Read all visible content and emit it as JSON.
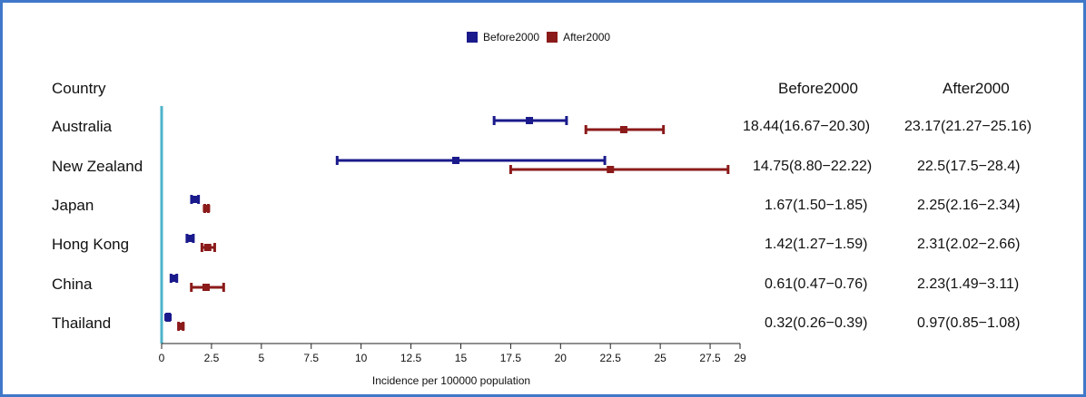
{
  "legend": {
    "before_label": "Before2000",
    "after_label": "After2000"
  },
  "headers": {
    "country": "Country",
    "before": "Before2000",
    "after": "After2000"
  },
  "colors": {
    "before": "#1a1a8c",
    "after": "#8b1a1a",
    "axis": "#4fb3c9",
    "frame": "#3f78c8"
  },
  "rows": [
    {
      "country": "Australia",
      "before_text": "18.44(16.67−20.30)",
      "after_text": "23.17(21.27−25.16)"
    },
    {
      "country": "New Zealand",
      "before_text": "14.75(8.80−22.22)",
      "after_text": "22.5(17.5−28.4)"
    },
    {
      "country": "Japan",
      "before_text": "1.67(1.50−1.85)",
      "after_text": "2.25(2.16−2.34)"
    },
    {
      "country": "Hong Kong",
      "before_text": "1.42(1.27−1.59)",
      "after_text": "2.31(2.02−2.66)"
    },
    {
      "country": "China",
      "before_text": "0.61(0.47−0.76)",
      "after_text": "2.23(1.49−3.11)"
    },
    {
      "country": "Thailand",
      "before_text": "0.32(0.26−0.39)",
      "after_text": "0.97(0.85−1.08)"
    }
  ],
  "chart_data": {
    "type": "scatter",
    "xlabel": "Incidence per 100000 population",
    "xlim": [
      0,
      29
    ],
    "xticks": [
      "0",
      "2.5",
      "5",
      "7.5",
      "10",
      "12.5",
      "15",
      "17.5",
      "20",
      "22.5",
      "25",
      "27.5",
      "29"
    ],
    "xtick_values": [
      0,
      2.5,
      5,
      7.5,
      10,
      12.5,
      15,
      17.5,
      20,
      22.5,
      25,
      27.5,
      29
    ],
    "categories": [
      "Australia",
      "New Zealand",
      "Japan",
      "Hong Kong",
      "China",
      "Thailand"
    ],
    "series": [
      {
        "name": "Before2000",
        "estimate": [
          18.44,
          14.75,
          1.67,
          1.42,
          0.61,
          0.32
        ],
        "lower": [
          16.67,
          8.8,
          1.5,
          1.27,
          0.47,
          0.26
        ],
        "upper": [
          20.3,
          22.22,
          1.85,
          1.59,
          0.76,
          0.39
        ]
      },
      {
        "name": "After2000",
        "estimate": [
          23.17,
          22.5,
          2.25,
          2.31,
          2.23,
          0.97
        ],
        "lower": [
          21.27,
          17.5,
          2.16,
          2.02,
          1.49,
          0.85
        ],
        "upper": [
          25.16,
          28.4,
          2.34,
          2.66,
          3.11,
          1.08
        ]
      }
    ]
  }
}
